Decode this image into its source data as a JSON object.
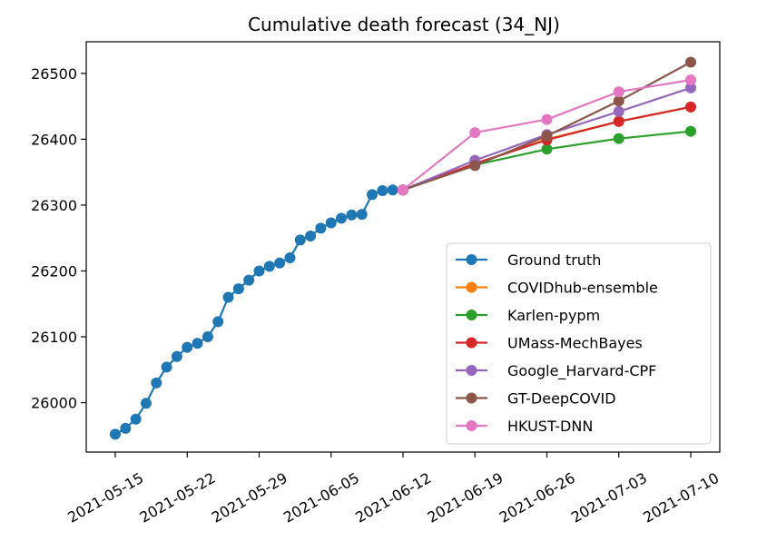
{
  "chart_data": {
    "type": "line",
    "title": "Cumulative death forecast (34_NJ)",
    "xlabel": "",
    "ylabel": "",
    "x_ticks": [
      "2021-05-15",
      "2021-05-22",
      "2021-05-29",
      "2021-06-05",
      "2021-06-12",
      "2021-06-19",
      "2021-06-26",
      "2021-07-03",
      "2021-07-10"
    ],
    "y_ticks": [
      26000,
      26100,
      26200,
      26300,
      26400,
      26500
    ],
    "xlim": [
      "2021-05-15",
      "2021-07-10"
    ],
    "ylim": [
      25925,
      26548
    ],
    "grid": false,
    "legend_position": "lower right",
    "series": [
      {
        "name": "Ground truth",
        "color": "#1f77b4",
        "x": [
          "2021-05-15",
          "2021-05-16",
          "2021-05-17",
          "2021-05-18",
          "2021-05-19",
          "2021-05-20",
          "2021-05-21",
          "2021-05-22",
          "2021-05-23",
          "2021-05-24",
          "2021-05-25",
          "2021-05-26",
          "2021-05-27",
          "2021-05-28",
          "2021-05-29",
          "2021-05-30",
          "2021-05-31",
          "2021-06-01",
          "2021-06-02",
          "2021-06-03",
          "2021-06-04",
          "2021-06-05",
          "2021-06-06",
          "2021-06-07",
          "2021-06-08",
          "2021-06-09",
          "2021-06-10",
          "2021-06-11",
          "2021-06-12"
        ],
        "y": [
          25952,
          25961,
          25975,
          25999,
          26030,
          26054,
          26070,
          26084,
          26090,
          26100,
          26123,
          26160,
          26173,
          26186,
          26200,
          26207,
          26212,
          26220,
          26247,
          26253,
          26265,
          26273,
          26280,
          26285,
          26286,
          26316,
          26322,
          26323,
          26323
        ]
      },
      {
        "name": "COVIDhub-ensemble",
        "color": "#ff7f0e",
        "x": [
          "2021-06-12",
          "2021-06-19",
          "2021-06-26",
          "2021-07-03",
          "2021-07-10"
        ],
        "y": [
          26323,
          26362,
          26400,
          26427,
          26449
        ]
      },
      {
        "name": "Karlen-pypm",
        "color": "#2ca02c",
        "x": [
          "2021-06-12",
          "2021-06-19",
          "2021-06-26",
          "2021-07-03",
          "2021-07-10"
        ],
        "y": [
          26323,
          26361,
          26385,
          26401,
          26412
        ]
      },
      {
        "name": "UMass-MechBayes",
        "color": "#d62728",
        "x": [
          "2021-06-12",
          "2021-06-19",
          "2021-06-26",
          "2021-07-03",
          "2021-07-10"
        ],
        "y": [
          26323,
          26363,
          26399,
          26427,
          26449
        ]
      },
      {
        "name": "Google_Harvard-CPF",
        "color": "#9467bd",
        "x": [
          "2021-06-12",
          "2021-06-19",
          "2021-06-26",
          "2021-07-03",
          "2021-07-10"
        ],
        "y": [
          26323,
          26368,
          26407,
          26442,
          26478
        ]
      },
      {
        "name": "GT-DeepCOVID",
        "color": "#8c564b",
        "x": [
          "2021-06-12",
          "2021-06-19",
          "2021-06-26",
          "2021-07-03",
          "2021-07-10"
        ],
        "y": [
          26323,
          26360,
          26405,
          26458,
          26517
        ]
      },
      {
        "name": "HKUST-DNN",
        "color": "#e377c2",
        "x": [
          "2021-06-12",
          "2021-06-19",
          "2021-06-26",
          "2021-07-03",
          "2021-07-10"
        ],
        "y": [
          26323,
          26410,
          26430,
          26472,
          26490
        ]
      }
    ]
  }
}
